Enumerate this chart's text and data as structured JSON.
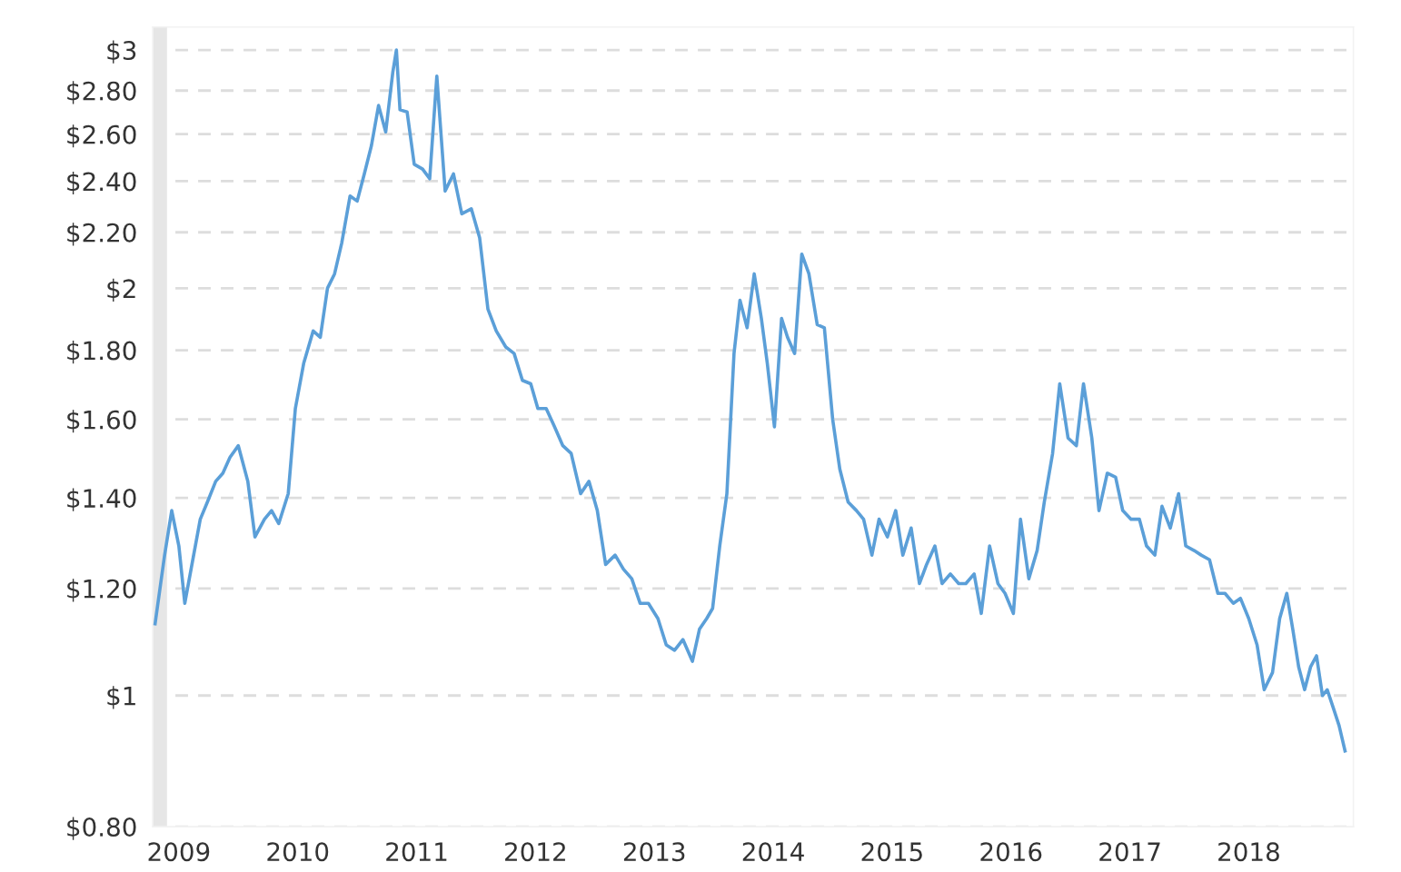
{
  "chart_data": {
    "type": "line",
    "x": [
      2008.8,
      2008.88,
      2008.94,
      2009.0,
      2009.05,
      2009.11,
      2009.18,
      2009.24,
      2009.31,
      2009.37,
      2009.43,
      2009.5,
      2009.58,
      2009.64,
      2009.72,
      2009.78,
      2009.84,
      2009.92,
      2009.98,
      2010.05,
      2010.13,
      2010.19,
      2010.25,
      2010.31,
      2010.37,
      2010.44,
      2010.5,
      2010.56,
      2010.62,
      2010.68,
      2010.74,
      2010.8,
      2010.83,
      2010.86,
      2010.92,
      2010.98,
      2011.05,
      2011.11,
      2011.17,
      2011.24,
      2011.31,
      2011.38,
      2011.46,
      2011.53,
      2011.6,
      2011.67,
      2011.75,
      2011.82,
      2011.89,
      2011.96,
      2012.02,
      2012.09,
      2012.16,
      2012.23,
      2012.3,
      2012.38,
      2012.45,
      2012.52,
      2012.59,
      2012.67,
      2012.74,
      2012.81,
      2012.88,
      2012.95,
      2013.03,
      2013.1,
      2013.17,
      2013.24,
      2013.32,
      2013.38,
      2013.44,
      2013.49,
      2013.55,
      2013.61,
      2013.67,
      2013.72,
      2013.78,
      2013.84,
      2013.9,
      2013.95,
      2014.01,
      2014.07,
      2014.12,
      2014.18,
      2014.24,
      2014.3,
      2014.37,
      2014.43,
      2014.5,
      2014.56,
      2014.63,
      2014.7,
      2014.76,
      2014.83,
      2014.89,
      2014.96,
      2015.03,
      2015.09,
      2015.16,
      2015.23,
      2015.29,
      2015.36,
      2015.42,
      2015.49,
      2015.56,
      2015.62,
      2015.69,
      2015.75,
      2015.82,
      2015.89,
      2015.95,
      2016.02,
      2016.08,
      2016.15,
      2016.22,
      2016.28,
      2016.35,
      2016.41,
      2016.48,
      2016.55,
      2016.61,
      2016.68,
      2016.74,
      2016.81,
      2016.88,
      2016.94,
      2017.01,
      2017.08,
      2017.14,
      2017.21,
      2017.27,
      2017.34,
      2017.41,
      2017.47,
      2017.54,
      2017.6,
      2017.67,
      2017.74,
      2017.8,
      2017.87,
      2017.93,
      2018.0,
      2018.07,
      2018.13,
      2018.2,
      2018.26,
      2018.32,
      2018.37,
      2018.42,
      2018.47,
      2018.52,
      2018.57,
      2018.62,
      2018.66,
      2018.71,
      2018.76,
      2018.81
    ],
    "series": [
      {
        "color": "#5b9fd8",
        "values": [
          1.13,
          1.27,
          1.37,
          1.29,
          1.17,
          1.25,
          1.35,
          1.39,
          1.44,
          1.46,
          1.5,
          1.53,
          1.44,
          1.31,
          1.35,
          1.37,
          1.34,
          1.41,
          1.63,
          1.76,
          1.86,
          1.84,
          2,
          2.05,
          2.16,
          2.34,
          2.32,
          2.43,
          2.55,
          2.73,
          2.61,
          2.89,
          3.0,
          2.71,
          2.7,
          2.47,
          2.45,
          2.41,
          2.87,
          2.36,
          2.43,
          2.27,
          2.29,
          2.18,
          1.93,
          1.86,
          1.81,
          1.79,
          1.71,
          1.7,
          1.63,
          1.63,
          1.58,
          1.53,
          1.51,
          1.41,
          1.44,
          1.37,
          1.25,
          1.27,
          1.24,
          1.22,
          1.17,
          1.17,
          1.14,
          1.09,
          1.08,
          1.1,
          1.06,
          1.12,
          1.14,
          1.16,
          1.29,
          1.41,
          1.79,
          1.96,
          1.87,
          2.05,
          1.9,
          1.76,
          1.58,
          1.9,
          1.84,
          1.79,
          2.12,
          2.05,
          1.88,
          1.87,
          1.6,
          1.47,
          1.39,
          1.37,
          1.35,
          1.27,
          1.35,
          1.31,
          1.37,
          1.27,
          1.33,
          1.21,
          1.25,
          1.29,
          1.21,
          1.23,
          1.21,
          1.21,
          1.23,
          1.15,
          1.29,
          1.21,
          1.19,
          1.15,
          1.35,
          1.22,
          1.28,
          1.39,
          1.51,
          1.7,
          1.55,
          1.53,
          1.7,
          1.55,
          1.37,
          1.46,
          1.45,
          1.37,
          1.35,
          1.35,
          1.29,
          1.27,
          1.38,
          1.33,
          1.41,
          1.29,
          1.28,
          1.27,
          1.26,
          1.19,
          1.19,
          1.17,
          1.18,
          1.14,
          1.09,
          1.01,
          1.04,
          1.14,
          1.19,
          1.12,
          1.05,
          1.01,
          1.05,
          1.07,
          1,
          1.01,
          0.98,
          0.95,
          0.91
        ]
      }
    ],
    "log": true,
    "xlim": [
      2008.78,
      2018.88
    ],
    "xticks": [
      2009,
      2010,
      2011,
      2012,
      2013,
      2014,
      2015,
      2016,
      2017,
      2018
    ],
    "ylim": [
      0.8,
      3.12
    ],
    "yticks": [
      {
        "value": 0.8,
        "label": "$0.80"
      },
      {
        "value": 1,
        "label": "$1"
      },
      {
        "value": 1.2,
        "label": "$1.20"
      },
      {
        "value": 1.4,
        "label": "$1.40"
      },
      {
        "value": 1.6,
        "label": "$1.60"
      },
      {
        "value": 1.8,
        "label": "$1.80"
      },
      {
        "value": 2,
        "label": "$2"
      },
      {
        "value": 2.2,
        "label": "$2.20"
      },
      {
        "value": 2.4,
        "label": "$2.40"
      },
      {
        "value": 2.6,
        "label": "$2.60"
      },
      {
        "value": 2.8,
        "label": "$2.80"
      },
      {
        "value": 3,
        "label": "$3"
      }
    ],
    "grid": "y",
    "bands": [
      {
        "axis": "x",
        "from": 2008.78,
        "to": 2008.9,
        "color": "#e6e6e6"
      }
    ]
  }
}
